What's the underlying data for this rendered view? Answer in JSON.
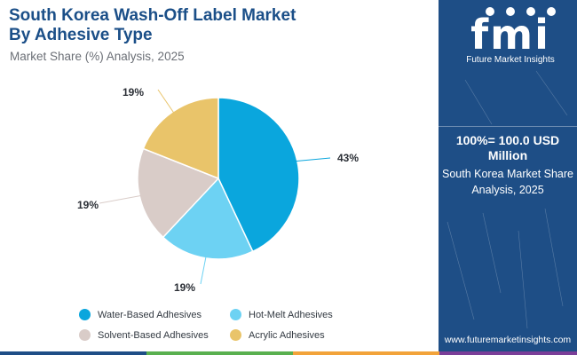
{
  "header": {
    "title_line1": "South Korea Wash-Off Label Market",
    "title_line2": "By Adhesive Type",
    "subtitle": "Market Share (%) Analysis, 2025"
  },
  "chart_data": {
    "type": "pie",
    "title": "South Korea Wash-Off Label Market By Adhesive Type",
    "subtitle": "Market Share (%) Analysis, 2025",
    "categories": [
      "Water-Based Adhesives",
      "Hot-Melt Adhesives",
      "Solvent-Based Adhesives",
      "Acrylic Adhesives"
    ],
    "values": [
      43,
      19,
      19,
      19
    ],
    "labels": [
      "43%",
      "19%",
      "19%",
      "19%"
    ],
    "colors": [
      "#0aa6dd",
      "#6dd2f3",
      "#d9ccc8",
      "#e9c46a"
    ],
    "legend_position": "bottom"
  },
  "sidebar": {
    "logo_text": "fmi",
    "logo_subtext": "Future Market Insights",
    "total_value": "100%= 100.0 USD Million",
    "description": "South Korea Market Share Analysis, 2025",
    "website": "www.futuremarketinsights.com"
  },
  "bottom_bar_colors": [
    "#1e4e86",
    "#59b04f",
    "#f2a33a",
    "#7a3e98"
  ]
}
